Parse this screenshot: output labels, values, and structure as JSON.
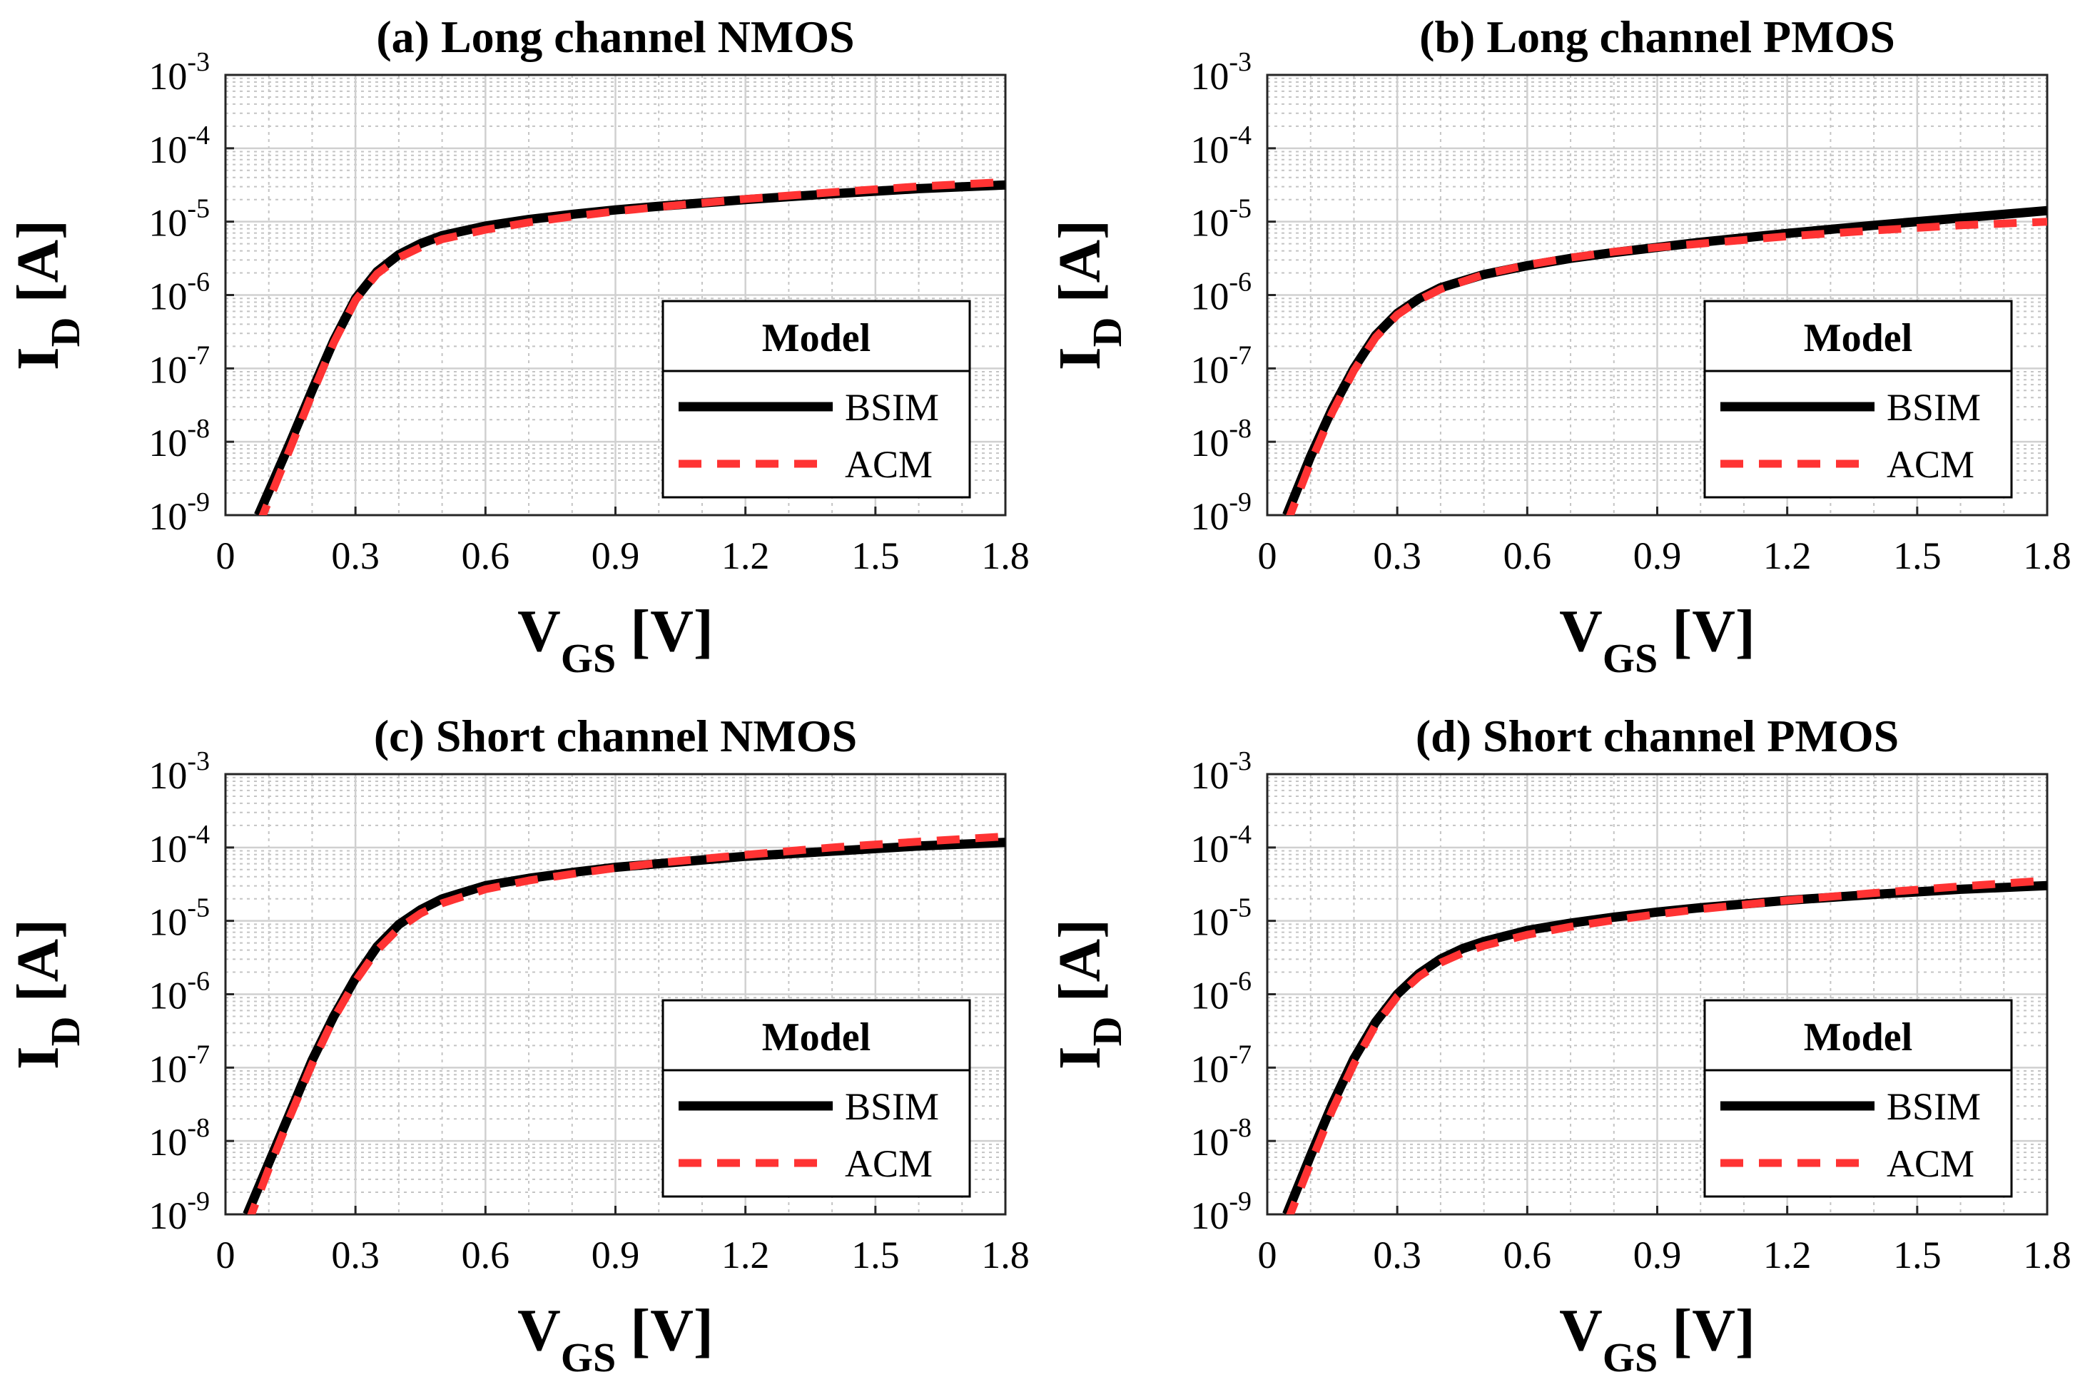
{
  "figure": {
    "colors": {
      "bsim": "#000000",
      "acm": "#ff3333",
      "grid_major": "#d0d0d0",
      "grid_minor": "#c4c4c4",
      "axis": "#262626"
    },
    "icons": {
      "bsim_swatch": "solid-line",
      "acm_swatch": "dashed-line"
    }
  },
  "chart_data": [
    {
      "type": "line",
      "title": "(a) Long channel NMOS",
      "xlabel": "V",
      "xlabel_sub": "GS",
      "xlabel_unit": "[V]",
      "ylabel": "I",
      "ylabel_sub": "D",
      "ylabel_unit": "[A]",
      "xlim": [
        0,
        1.8
      ],
      "xticks": [
        "0",
        "0.3",
        "0.6",
        "0.9",
        "1.2",
        "1.5",
        "1.8"
      ],
      "ylim_exp": [
        -9,
        -3
      ],
      "yticks": [
        "10",
        "10",
        "10",
        "10",
        "10",
        "10",
        "10"
      ],
      "yticks_exp": [
        "-9",
        "-8",
        "-7",
        "-6",
        "-5",
        "-4",
        "-3"
      ],
      "yscale": "log",
      "grid": true,
      "legend": {
        "title": "Model",
        "position": "lower-right",
        "entries": [
          "BSIM",
          "ACM"
        ]
      },
      "x": [
        0.076,
        0.15,
        0.2,
        0.25,
        0.3,
        0.35,
        0.4,
        0.45,
        0.5,
        0.6,
        0.7,
        0.8,
        0.9,
        1.0,
        1.2,
        1.4,
        1.6,
        1.8
      ],
      "series": [
        {
          "name": "BSIM",
          "log10_values": [
            -9.0,
            -8.0,
            -7.3,
            -6.62,
            -6.05,
            -5.68,
            -5.45,
            -5.3,
            -5.19,
            -5.06,
            -4.97,
            -4.9,
            -4.84,
            -4.79,
            -4.7,
            -4.62,
            -4.55,
            -4.5
          ]
        },
        {
          "name": "ACM",
          "log10_values": [
            -9.15,
            -8.08,
            -7.35,
            -6.65,
            -6.07,
            -5.71,
            -5.49,
            -5.35,
            -5.24,
            -5.11,
            -5.01,
            -4.93,
            -4.86,
            -4.8,
            -4.69,
            -4.6,
            -4.52,
            -4.46
          ]
        }
      ]
    },
    {
      "type": "line",
      "title": "(b) Long channel PMOS",
      "xlabel": "V",
      "xlabel_sub": "GS",
      "xlabel_unit": "[V]",
      "ylabel": "I",
      "ylabel_sub": "D",
      "ylabel_unit": "[A]",
      "xlim": [
        0,
        1.8
      ],
      "xticks": [
        "0",
        "0.3",
        "0.6",
        "0.9",
        "1.2",
        "1.5",
        "1.8"
      ],
      "ylim_exp": [
        -9,
        -3
      ],
      "yticks": [
        "10",
        "10",
        "10",
        "10",
        "10",
        "10",
        "10"
      ],
      "yticks_exp": [
        "-9",
        "-8",
        "-7",
        "-6",
        "-5",
        "-4",
        "-3"
      ],
      "yscale": "log",
      "grid": true,
      "legend": {
        "title": "Model",
        "position": "lower-right",
        "entries": [
          "BSIM",
          "ACM"
        ]
      },
      "x": [
        0.045,
        0.1,
        0.15,
        0.2,
        0.25,
        0.3,
        0.35,
        0.4,
        0.5,
        0.6,
        0.7,
        0.8,
        0.9,
        1.0,
        1.2,
        1.4,
        1.6,
        1.8
      ],
      "series": [
        {
          "name": "BSIM",
          "log10_values": [
            -9.0,
            -8.2,
            -7.55,
            -7.0,
            -6.55,
            -6.25,
            -6.05,
            -5.9,
            -5.72,
            -5.6,
            -5.5,
            -5.42,
            -5.35,
            -5.28,
            -5.16,
            -5.05,
            -4.95,
            -4.85
          ]
        },
        {
          "name": "ACM",
          "log10_values": [
            -9.12,
            -8.28,
            -7.6,
            -7.03,
            -6.58,
            -6.27,
            -6.07,
            -5.92,
            -5.72,
            -5.59,
            -5.49,
            -5.41,
            -5.35,
            -5.3,
            -5.2,
            -5.12,
            -5.05,
            -5.0
          ]
        }
      ]
    },
    {
      "type": "line",
      "title": "(c) Short channel NMOS",
      "xlabel": "V",
      "xlabel_sub": "GS",
      "xlabel_unit": "[V]",
      "ylabel": "I",
      "ylabel_sub": "D",
      "ylabel_unit": "[A]",
      "xlim": [
        0,
        1.8
      ],
      "xticks": [
        "0",
        "0.3",
        "0.6",
        "0.9",
        "1.2",
        "1.5",
        "1.8"
      ],
      "ylim_exp": [
        -9,
        -3
      ],
      "yticks": [
        "10",
        "10",
        "10",
        "10",
        "10",
        "10",
        "10"
      ],
      "yticks_exp": [
        "-9",
        "-8",
        "-7",
        "-6",
        "-5",
        "-4",
        "-3"
      ],
      "yscale": "log",
      "grid": true,
      "legend": {
        "title": "Model",
        "position": "lower-right",
        "entries": [
          "BSIM",
          "ACM"
        ]
      },
      "x": [
        0.05,
        0.1,
        0.15,
        0.2,
        0.25,
        0.3,
        0.35,
        0.4,
        0.45,
        0.5,
        0.6,
        0.7,
        0.8,
        0.9,
        1.0,
        1.2,
        1.4,
        1.6,
        1.8
      ],
      "series": [
        {
          "name": "BSIM",
          "log10_values": [
            -9.0,
            -8.3,
            -7.6,
            -6.9,
            -6.3,
            -5.78,
            -5.35,
            -5.05,
            -4.85,
            -4.7,
            -4.52,
            -4.42,
            -4.34,
            -4.27,
            -4.22,
            -4.12,
            -4.05,
            -3.98,
            -3.93
          ]
        },
        {
          "name": "ACM",
          "log10_values": [
            -9.15,
            -8.38,
            -7.65,
            -6.95,
            -6.33,
            -5.82,
            -5.4,
            -5.1,
            -4.9,
            -4.76,
            -4.57,
            -4.45,
            -4.36,
            -4.28,
            -4.21,
            -4.1,
            -4.0,
            -3.92,
            -3.85
          ]
        }
      ]
    },
    {
      "type": "line",
      "title": "(d) Short channel PMOS",
      "xlabel": "V",
      "xlabel_sub": "GS",
      "xlabel_unit": "[V]",
      "ylabel": "I",
      "ylabel_sub": "D",
      "ylabel_unit": "[A]",
      "xlim": [
        0,
        1.8
      ],
      "xticks": [
        "0",
        "0.3",
        "0.6",
        "0.9",
        "1.2",
        "1.5",
        "1.8"
      ],
      "ylim_exp": [
        -9,
        -3
      ],
      "yticks": [
        "10",
        "10",
        "10",
        "10",
        "10",
        "10",
        "10"
      ],
      "yticks_exp": [
        "-9",
        "-8",
        "-7",
        "-6",
        "-5",
        "-4",
        "-3"
      ],
      "yscale": "log",
      "grid": true,
      "legend": {
        "title": "Model",
        "position": "lower-right",
        "entries": [
          "BSIM",
          "ACM"
        ]
      },
      "x": [
        0.045,
        0.1,
        0.15,
        0.2,
        0.25,
        0.3,
        0.35,
        0.4,
        0.45,
        0.5,
        0.6,
        0.7,
        0.8,
        0.9,
        1.0,
        1.2,
        1.4,
        1.6,
        1.8
      ],
      "series": [
        {
          "name": "BSIM",
          "log10_values": [
            -9.0,
            -8.2,
            -7.5,
            -6.88,
            -6.38,
            -6.0,
            -5.72,
            -5.52,
            -5.38,
            -5.28,
            -5.13,
            -5.03,
            -4.95,
            -4.88,
            -4.82,
            -4.72,
            -4.64,
            -4.57,
            -4.52
          ]
        },
        {
          "name": "ACM",
          "log10_values": [
            -9.12,
            -8.3,
            -7.58,
            -6.95,
            -6.42,
            -6.03,
            -5.76,
            -5.57,
            -5.44,
            -5.34,
            -5.19,
            -5.08,
            -4.99,
            -4.91,
            -4.84,
            -4.72,
            -4.62,
            -4.53,
            -4.45
          ]
        }
      ]
    }
  ]
}
